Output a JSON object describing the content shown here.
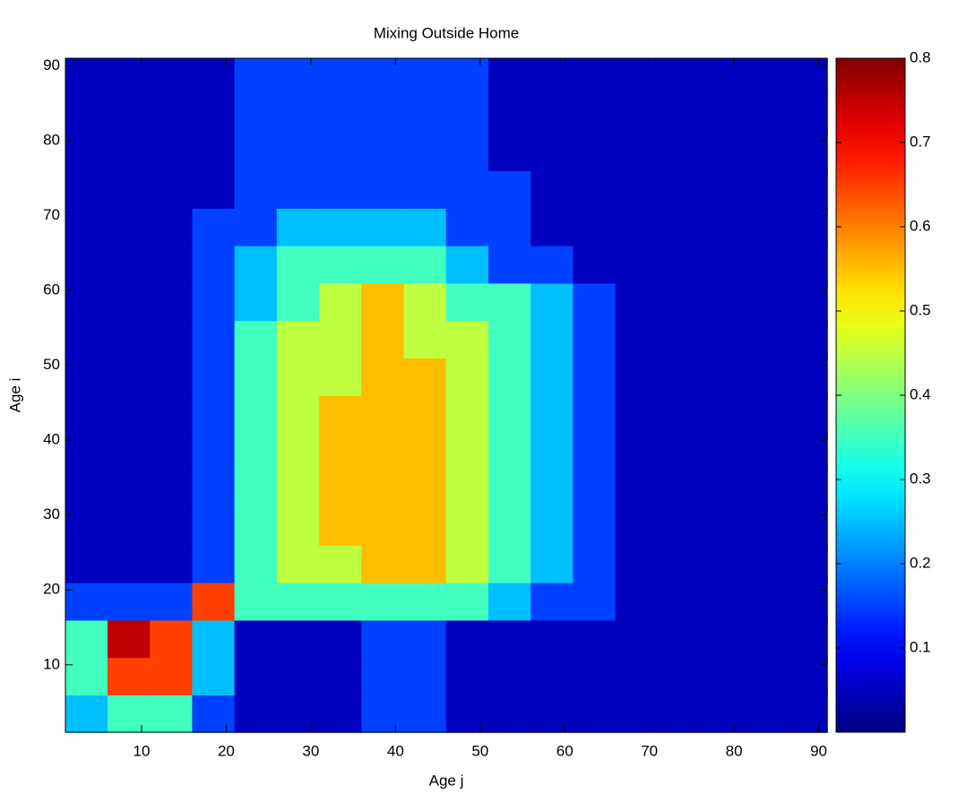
{
  "chart_data": {
    "type": "contourf",
    "title": "Mixing Outside Home",
    "xlabel": "Age j",
    "ylabel": "Age i",
    "xlim": [
      1,
      91
    ],
    "ylim": [
      1,
      91
    ],
    "xticks": [
      10,
      20,
      30,
      40,
      50,
      60,
      70,
      80,
      90
    ],
    "yticks": [
      10,
      20,
      30,
      40,
      50,
      60,
      70,
      80,
      90
    ],
    "clim": [
      0,
      0.8
    ],
    "cticks": [
      0.1,
      0.2,
      0.3,
      0.4,
      0.5,
      0.6,
      0.7,
      0.8
    ],
    "colormap": "jet",
    "levels": [
      0,
      0.1,
      0.2,
      0.3,
      0.4,
      0.5,
      0.6,
      0.7,
      0.8
    ],
    "xbins": [
      1,
      6,
      11,
      16,
      21,
      26,
      31,
      36,
      41,
      46,
      51,
      56,
      61,
      66,
      71,
      76,
      81,
      86,
      91
    ],
    "ybins": [
      1,
      6,
      11,
      16,
      21,
      26,
      31,
      36,
      41,
      46,
      51,
      56,
      61,
      66,
      71,
      76,
      81,
      86,
      91
    ],
    "z": [
      [
        0.25,
        0.35,
        0.3,
        0.15,
        0.05,
        0.05,
        0.05,
        0.15,
        0.15,
        0.05,
        0.05,
        0.05,
        0.05,
        0.05,
        0.05,
        0.05,
        0.05,
        0.05
      ],
      [
        0.35,
        0.65,
        0.6,
        0.25,
        0.05,
        0.05,
        0.05,
        0.15,
        0.15,
        0.05,
        0.05,
        0.05,
        0.05,
        0.05,
        0.05,
        0.05,
        0.05,
        0.05
      ],
      [
        0.35,
        0.75,
        0.65,
        0.25,
        0.05,
        0.05,
        0.05,
        0.15,
        0.15,
        0.05,
        0.05,
        0.05,
        0.05,
        0.05,
        0.05,
        0.05,
        0.05,
        0.05
      ],
      [
        0.15,
        0.15,
        0.15,
        0.65,
        0.3,
        0.35,
        0.35,
        0.35,
        0.35,
        0.35,
        0.25,
        0.15,
        0.15,
        0.05,
        0.05,
        0.05,
        0.05,
        0.05
      ],
      [
        0.05,
        0.05,
        0.05,
        0.15,
        0.3,
        0.45,
        0.45,
        0.5,
        0.5,
        0.45,
        0.35,
        0.25,
        0.15,
        0.05,
        0.05,
        0.05,
        0.05,
        0.05
      ],
      [
        0.05,
        0.05,
        0.05,
        0.15,
        0.3,
        0.45,
        0.5,
        0.55,
        0.5,
        0.45,
        0.35,
        0.25,
        0.15,
        0.05,
        0.05,
        0.05,
        0.05,
        0.05
      ],
      [
        0.05,
        0.05,
        0.05,
        0.15,
        0.35,
        0.45,
        0.5,
        0.55,
        0.5,
        0.45,
        0.35,
        0.25,
        0.15,
        0.05,
        0.05,
        0.05,
        0.05,
        0.05
      ],
      [
        0.05,
        0.05,
        0.05,
        0.15,
        0.35,
        0.45,
        0.55,
        0.55,
        0.5,
        0.45,
        0.35,
        0.25,
        0.15,
        0.05,
        0.05,
        0.05,
        0.05,
        0.05
      ],
      [
        0.05,
        0.05,
        0.05,
        0.15,
        0.3,
        0.45,
        0.5,
        0.55,
        0.55,
        0.45,
        0.35,
        0.25,
        0.15,
        0.05,
        0.05,
        0.05,
        0.05,
        0.05
      ],
      [
        0.05,
        0.05,
        0.05,
        0.15,
        0.3,
        0.45,
        0.45,
        0.55,
        0.5,
        0.45,
        0.3,
        0.25,
        0.15,
        0.05,
        0.05,
        0.05,
        0.05,
        0.05
      ],
      [
        0.05,
        0.05,
        0.05,
        0.15,
        0.3,
        0.4,
        0.45,
        0.55,
        0.45,
        0.4,
        0.3,
        0.25,
        0.15,
        0.05,
        0.05,
        0.05,
        0.05,
        0.05
      ],
      [
        0.05,
        0.05,
        0.05,
        0.15,
        0.25,
        0.35,
        0.45,
        0.5,
        0.45,
        0.35,
        0.3,
        0.2,
        0.15,
        0.05,
        0.05,
        0.05,
        0.05,
        0.05
      ],
      [
        0.05,
        0.05,
        0.05,
        0.15,
        0.25,
        0.3,
        0.35,
        0.35,
        0.35,
        0.25,
        0.15,
        0.15,
        0.05,
        0.05,
        0.05,
        0.05,
        0.05,
        0.05
      ],
      [
        0.05,
        0.05,
        0.05,
        0.1,
        0.15,
        0.2,
        0.2,
        0.2,
        0.2,
        0.15,
        0.12,
        0.05,
        0.05,
        0.05,
        0.05,
        0.05,
        0.05,
        0.05
      ],
      [
        0.05,
        0.05,
        0.05,
        0.05,
        0.15,
        0.15,
        0.15,
        0.15,
        0.15,
        0.15,
        0.15,
        0.05,
        0.05,
        0.05,
        0.05,
        0.05,
        0.05,
        0.05
      ],
      [
        0.05,
        0.05,
        0.05,
        0.05,
        0.15,
        0.15,
        0.15,
        0.15,
        0.15,
        0.15,
        0.05,
        0.05,
        0.05,
        0.05,
        0.05,
        0.05,
        0.05,
        0.05
      ],
      [
        0.05,
        0.05,
        0.05,
        0.05,
        0.15,
        0.15,
        0.15,
        0.15,
        0.15,
        0.15,
        0.05,
        0.05,
        0.05,
        0.05,
        0.05,
        0.05,
        0.05,
        0.05
      ],
      [
        0.05,
        0.05,
        0.05,
        0.05,
        0.15,
        0.15,
        0.15,
        0.15,
        0.15,
        0.15,
        0.05,
        0.05,
        0.05,
        0.05,
        0.05,
        0.05,
        0.05,
        0.05
      ]
    ]
  }
}
